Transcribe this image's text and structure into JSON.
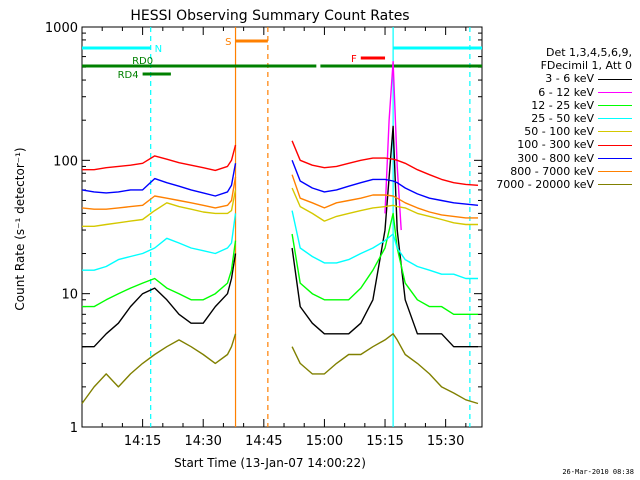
{
  "chart_data": {
    "type": "line",
    "title": "HESSI Observing Summary Count Rates",
    "xlabel": "Start Time (13-Jan-07 14:00:22)",
    "ylabel": "Count Rate (s⁻¹ detector⁻¹)",
    "x_tick_labels": [
      "14:15",
      "14:30",
      "14:45",
      "15:00",
      "15:15",
      "15:30"
    ],
    "x_ticks_min": [
      15,
      30,
      45,
      60,
      75,
      90
    ],
    "xlim_min": [
      0,
      99
    ],
    "y_scale": "log",
    "ylim": [
      1,
      1000
    ],
    "y_tick_labels": [
      "1",
      "10",
      "100",
      "1000"
    ],
    "y_ticks": [
      1,
      10,
      100,
      1000
    ],
    "legend_header": [
      "Det 1,3,4,5,6,9,",
      "FDecimil 1, Att 0"
    ],
    "legend_position": "right-outside",
    "series": [
      {
        "name": "3 - 6 keV",
        "color": "#000000",
        "x": [
          0,
          3,
          6,
          9,
          12,
          15,
          18,
          21,
          24,
          27,
          30,
          33,
          36,
          37,
          38,
          51,
          52,
          54,
          57,
          60,
          63,
          66,
          69,
          72,
          75,
          77,
          78,
          80,
          83,
          86,
          89,
          92,
          95,
          98
        ],
        "y": [
          4,
          4,
          5,
          6,
          8,
          10,
          11,
          9,
          7,
          6,
          6,
          8,
          10,
          13,
          20,
          null,
          22,
          8,
          6,
          5,
          5,
          5,
          6,
          9,
          30,
          180,
          30,
          9,
          5,
          5,
          5,
          4,
          4,
          4
        ]
      },
      {
        "name": "6 - 12 keV",
        "color": "#ff00ff",
        "x": [
          75,
          76,
          77,
          78,
          79
        ],
        "y": [
          40,
          200,
          550,
          90,
          30
        ]
      },
      {
        "name": "12 - 25 keV",
        "color": "#00ff00",
        "x": [
          0,
          3,
          6,
          9,
          12,
          15,
          18,
          21,
          24,
          27,
          30,
          33,
          36,
          37,
          38,
          51,
          52,
          54,
          57,
          60,
          63,
          66,
          69,
          72,
          75,
          77,
          78,
          80,
          83,
          86,
          89,
          92,
          95,
          98
        ],
        "y": [
          8,
          8,
          9,
          10,
          11,
          12,
          13,
          11,
          10,
          9,
          9,
          10,
          12,
          15,
          25,
          null,
          28,
          12,
          10,
          9,
          9,
          9,
          11,
          15,
          22,
          40,
          22,
          12,
          9,
          8,
          8,
          7,
          7,
          7
        ]
      },
      {
        "name": "25 - 50 keV",
        "color": "#00ffff",
        "x": [
          0,
          3,
          6,
          9,
          12,
          15,
          18,
          21,
          24,
          27,
          30,
          33,
          36,
          37,
          38,
          51,
          52,
          54,
          57,
          60,
          63,
          66,
          69,
          72,
          75,
          77,
          78,
          80,
          83,
          86,
          89,
          92,
          95,
          98
        ],
        "y": [
          15,
          15,
          16,
          18,
          19,
          20,
          22,
          26,
          24,
          22,
          21,
          20,
          22,
          24,
          40,
          null,
          42,
          22,
          19,
          17,
          17,
          18,
          20,
          22,
          25,
          28,
          22,
          18,
          16,
          15,
          14,
          14,
          13,
          13
        ]
      },
      {
        "name": "50 - 100 keV",
        "color": "#d4c800",
        "x": [
          0,
          3,
          6,
          9,
          12,
          15,
          18,
          21,
          24,
          27,
          30,
          33,
          36,
          37,
          38,
          51,
          52,
          54,
          57,
          60,
          63,
          66,
          69,
          72,
          75,
          77,
          78,
          80,
          83,
          86,
          89,
          92,
          95,
          98
        ],
        "y": [
          32,
          32,
          33,
          34,
          35,
          36,
          42,
          48,
          45,
          43,
          41,
          40,
          40,
          42,
          60,
          null,
          62,
          45,
          40,
          35,
          38,
          40,
          42,
          44,
          45,
          46,
          45,
          44,
          40,
          38,
          36,
          34,
          33,
          33
        ]
      },
      {
        "name": "100 - 300 keV",
        "color": "#ff0000",
        "x": [
          0,
          3,
          6,
          9,
          12,
          15,
          18,
          21,
          24,
          27,
          30,
          33,
          36,
          37,
          38,
          51,
          52,
          54,
          57,
          60,
          63,
          66,
          69,
          72,
          75,
          77,
          78,
          80,
          83,
          86,
          89,
          92,
          95,
          98
        ],
        "y": [
          85,
          85,
          88,
          90,
          92,
          95,
          108,
          102,
          96,
          92,
          88,
          84,
          90,
          100,
          130,
          null,
          140,
          100,
          92,
          88,
          90,
          95,
          100,
          104,
          104,
          102,
          100,
          95,
          85,
          78,
          72,
          68,
          66,
          65
        ]
      },
      {
        "name": "300 - 800 keV",
        "color": "#0000ff",
        "x": [
          0,
          3,
          6,
          9,
          12,
          15,
          18,
          21,
          24,
          27,
          30,
          33,
          36,
          37,
          38,
          51,
          52,
          54,
          57,
          60,
          63,
          66,
          69,
          72,
          75,
          77,
          78,
          80,
          83,
          86,
          89,
          92,
          95,
          98
        ],
        "y": [
          60,
          58,
          57,
          58,
          60,
          60,
          73,
          68,
          64,
          60,
          57,
          54,
          58,
          65,
          95,
          null,
          100,
          70,
          62,
          58,
          60,
          64,
          68,
          72,
          72,
          70,
          68,
          62,
          56,
          52,
          50,
          48,
          47,
          46
        ]
      },
      {
        "name": "800 - 7000 keV",
        "color": "#ff8000",
        "x": [
          0,
          3,
          6,
          9,
          12,
          15,
          18,
          21,
          24,
          27,
          30,
          33,
          36,
          37,
          38,
          51,
          52,
          54,
          57,
          60,
          63,
          66,
          69,
          72,
          75,
          77,
          78,
          80,
          83,
          86,
          89,
          92,
          95,
          98
        ],
        "y": [
          44,
          43,
          43,
          44,
          45,
          46,
          54,
          52,
          50,
          48,
          46,
          44,
          46,
          50,
          75,
          null,
          78,
          52,
          48,
          44,
          48,
          50,
          52,
          55,
          55,
          54,
          52,
          48,
          44,
          41,
          39,
          38,
          37,
          37
        ]
      },
      {
        "name": "7000 - 20000 keV",
        "color": "#808000",
        "x": [
          0,
          3,
          6,
          9,
          12,
          15,
          18,
          21,
          24,
          27,
          30,
          33,
          36,
          37,
          38,
          51,
          52,
          54,
          57,
          60,
          63,
          66,
          69,
          72,
          75,
          77,
          78,
          80,
          83,
          86,
          89,
          92,
          95,
          98
        ],
        "y": [
          1.5,
          2,
          2.5,
          2,
          2.5,
          3,
          3.5,
          4,
          4.5,
          4,
          3.5,
          3,
          3.5,
          4,
          5,
          null,
          4,
          3,
          2.5,
          2.5,
          3,
          3.5,
          3.5,
          4,
          4.5,
          5,
          4.5,
          3.5,
          3,
          2.5,
          2,
          1.8,
          1.6,
          1.5
        ]
      }
    ],
    "flags": [
      {
        "label": "N",
        "color": "#00ffff",
        "segments": [
          [
            0,
            17
          ],
          [
            77,
            99
          ]
        ]
      },
      {
        "label": "S",
        "color": "#ff8000",
        "segments": [
          [
            38,
            46
          ]
        ]
      },
      {
        "label": "F",
        "color": "#ff0000",
        "segments": [
          [
            69,
            75
          ]
        ]
      },
      {
        "label": "RD0",
        "color": "#008000",
        "segments": [
          [
            0,
            58
          ],
          [
            59,
            99
          ]
        ]
      },
      {
        "label": "RD4",
        "color": "#008000",
        "segments": [
          [
            15,
            22
          ]
        ]
      }
    ],
    "vertical_markers": [
      {
        "t": 17,
        "color": "#00ffff",
        "style": "dashed"
      },
      {
        "t": 38,
        "color": "#ff8000",
        "style": "solid"
      },
      {
        "t": 46,
        "color": "#ff8000",
        "style": "dashed"
      },
      {
        "t": 77,
        "color": "#00ffff",
        "style": "solid"
      },
      {
        "t": 96,
        "color": "#00ffff",
        "style": "dashed"
      }
    ],
    "grid": false
  },
  "footer_timestamp": "26-Mar-2010 08:38"
}
